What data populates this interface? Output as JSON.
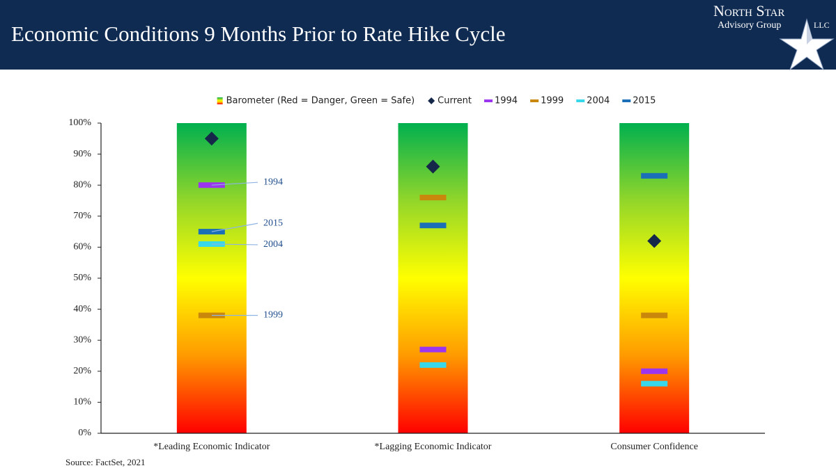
{
  "logo": {
    "name": "North Star",
    "subtitle": "Advisory Group",
    "suffix": "LLC"
  },
  "chart_data": {
    "type": "bar",
    "title": "Economic Conditions 9 Months Prior to Rate Hike Cycle",
    "source": "Source: FactSet, 2021",
    "categories": [
      "*Leading Economic Indicator",
      "*Lagging Economic Indicator",
      "Consumer Confidence"
    ],
    "series": [
      {
        "name": "Barometer (Red = Danger, Green = Safe)",
        "marker": "bar",
        "color": [
          "#ff0000",
          "#ff9a00",
          "#ffff00",
          "#92d62a",
          "#00b04f"
        ],
        "values": [
          100,
          100,
          100
        ]
      },
      {
        "name": "Current",
        "marker": "diamond",
        "color": "#15284a",
        "values": [
          95,
          86,
          62
        ]
      },
      {
        "name": "1994",
        "marker": "dash",
        "color": "#9b35ee",
        "values": [
          80,
          27,
          20
        ]
      },
      {
        "name": "1999",
        "marker": "dash",
        "color": "#c9870c",
        "values": [
          38,
          76,
          38
        ]
      },
      {
        "name": "2004",
        "marker": "dash",
        "color": "#38d8ea",
        "values": [
          61,
          22,
          16
        ]
      },
      {
        "name": "2015",
        "marker": "dash",
        "color": "#1b6fb6",
        "values": [
          65,
          67,
          83
        ]
      }
    ],
    "ylim": [
      0,
      100
    ],
    "yticks": [
      {
        "value": 0,
        "label": "0%"
      },
      {
        "value": 10,
        "label": "10%"
      },
      {
        "value": 20,
        "label": "20%"
      },
      {
        "value": 30,
        "label": "30%"
      },
      {
        "value": 40,
        "label": "40%"
      },
      {
        "value": 50,
        "label": "50%"
      },
      {
        "value": 60,
        "label": "60%"
      },
      {
        "value": 70,
        "label": "70%"
      },
      {
        "value": 80,
        "label": "80%"
      },
      {
        "value": 90,
        "label": "90%"
      },
      {
        "value": 100,
        "label": "100%"
      }
    ],
    "legend": "top"
  }
}
